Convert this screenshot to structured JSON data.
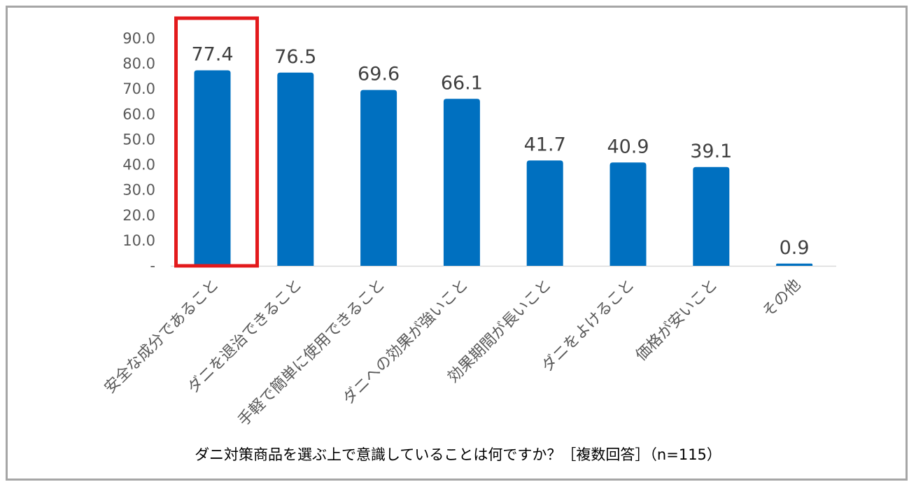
{
  "chart_data": {
    "type": "bar",
    "categories": [
      "安全な成分であること",
      "ダニを退治できること",
      "手軽で簡単に使用できること",
      "ダニへの効果が強いこと",
      "効果期間が長いこと",
      "ダニをよけること",
      "価格が安いこと",
      "その他"
    ],
    "values": [
      77.4,
      76.5,
      69.6,
      66.1,
      41.7,
      40.9,
      39.1,
      0.9
    ],
    "value_labels": [
      "77.4",
      "76.5",
      "69.6",
      "66.1",
      "41.7",
      "40.9",
      "39.1",
      "0.9"
    ],
    "yticks": [
      "-",
      "10.0",
      "20.0",
      "30.0",
      "40.0",
      "50.0",
      "60.0",
      "70.0",
      "80.0",
      "90.0"
    ],
    "ylim": [
      0,
      90
    ],
    "highlight_index": 0,
    "bar_color": "#0070c0",
    "highlight_color": "#e31a1c",
    "caption": "ダニ対策商品を選ぶ上で意識していることは何ですか？［複数回答］（n=115）"
  }
}
